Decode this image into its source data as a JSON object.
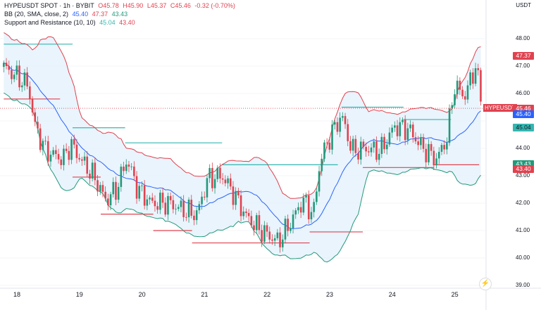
{
  "header": {
    "symbol": "HYPEUSDT SPOT · 1h · BYBIT",
    "open": "O45.78",
    "high": "H45.90",
    "low": "L45.37",
    "close": "C45.46",
    "change": "-0.32 (-0.70%)",
    "bb_label": "BB (20, SMA, close, 2)",
    "bb_basis": "45.40",
    "bb_upper": "47.37",
    "bb_lower": "43.43",
    "sr_label": "Support and Resistance (10, 10)",
    "sr_resistance": "45.04",
    "sr_support": "43.40"
  },
  "currency": "USDT",
  "symbol_tag": "HYPEUSDT",
  "price_tags": {
    "upper": "47.37",
    "last": "45.46",
    "basis": "45.40",
    "resistance": "45.04",
    "lower": "43.43",
    "support": "43.40"
  },
  "colors": {
    "up": "#22997a",
    "down": "#e0424f",
    "basis": "#2962ff",
    "upper": "#e0424f",
    "lower": "#22997a",
    "band_fill": "#e3f1fb",
    "resistance": "#35b6b0",
    "support": "#e0424f"
  },
  "chart_data": {
    "type": "candlestick",
    "interval": "1h",
    "y_ticks": [
      48,
      47,
      46,
      45,
      44,
      43,
      42,
      41,
      40,
      39
    ],
    "y_tick_labels": [
      "48.00",
      "47.00",
      "46.00",
      "",
      "44.00",
      "43.00",
      "42.00",
      "41.00",
      "40.00",
      "39.00"
    ],
    "ylim": [
      38.6,
      49.8
    ],
    "xlim": [
      17.73,
      25.95
    ],
    "x_ticks": [
      18,
      19,
      20,
      21,
      22,
      23,
      24,
      25
    ],
    "x_tick_labels": [
      "18",
      "19",
      "20",
      "21",
      "22",
      "23",
      "24",
      "25"
    ],
    "price_path": [
      [
        17.79,
        46.97
      ],
      [
        17.95,
        46.7
      ],
      [
        18.18,
        46.3
      ],
      [
        18.29,
        44.8
      ],
      [
        18.46,
        43.9
      ],
      [
        18.74,
        43.6
      ],
      [
        18.86,
        44.15
      ],
      [
        19.02,
        43.6
      ],
      [
        19.25,
        42.9
      ],
      [
        19.42,
        42.1
      ],
      [
        19.59,
        42.5
      ],
      [
        19.76,
        43.6
      ],
      [
        19.93,
        42.5
      ],
      [
        20.15,
        42.0
      ],
      [
        20.43,
        42.0
      ],
      [
        20.71,
        41.7
      ],
      [
        20.88,
        41.6
      ],
      [
        21.05,
        42.9
      ],
      [
        21.28,
        43.0
      ],
      [
        21.45,
        42.4
      ],
      [
        21.67,
        41.5
      ],
      [
        21.9,
        41.0
      ],
      [
        22.18,
        40.6
      ],
      [
        22.35,
        41.2
      ],
      [
        22.57,
        42.1
      ],
      [
        22.74,
        41.6
      ],
      [
        22.85,
        43.6
      ],
      [
        23.02,
        44.5
      ],
      [
        23.19,
        45.2
      ],
      [
        23.36,
        43.9
      ],
      [
        23.59,
        44.0
      ],
      [
        23.81,
        43.9
      ],
      [
        24.04,
        44.8
      ],
      [
        24.26,
        44.7
      ],
      [
        24.49,
        44.0
      ],
      [
        24.71,
        43.6
      ],
      [
        24.88,
        44.4
      ],
      [
        24.99,
        46.3
      ],
      [
        25.16,
        45.9
      ],
      [
        25.33,
        47.0
      ],
      [
        25.45,
        45.46
      ]
    ],
    "last_candle": {
      "open": 45.78,
      "high": 45.9,
      "low": 45.37,
      "close": 45.46
    },
    "bollinger": {
      "period": 20,
      "mult": 2
    },
    "resistance_levels": [
      [
        17.79,
        18.89,
        47.8
      ],
      [
        18.89,
        19.73,
        44.75
      ],
      [
        19.73,
        21.28,
        44.2
      ],
      [
        21.28,
        23.13,
        43.4
      ],
      [
        23.19,
        24.18,
        45.5
      ],
      [
        24.18,
        24.94,
        45.05
      ]
    ],
    "support_levels": [
      [
        17.79,
        18.69,
        45.8
      ],
      [
        18.89,
        19.34,
        42.95
      ],
      [
        19.34,
        20.18,
        41.6
      ],
      [
        20.18,
        20.8,
        41.0
      ],
      [
        20.8,
        22.68,
        40.55
      ],
      [
        22.68,
        23.53,
        40.95
      ],
      [
        23.53,
        24.66,
        43.3
      ],
      [
        24.66,
        25.39,
        43.4
      ]
    ],
    "last_price": 45.46
  }
}
